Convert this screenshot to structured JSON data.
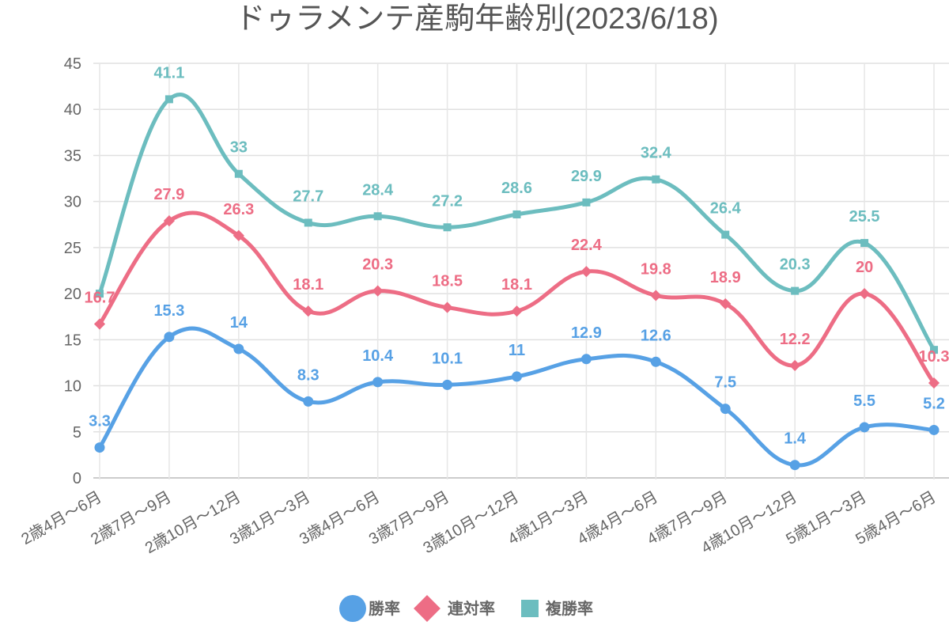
{
  "chart_data": {
    "type": "line",
    "title": "ドゥラメンテ産駒年齢別(2023/6/18)",
    "xlabel": "",
    "ylabel": "",
    "ylim": [
      0,
      45
    ],
    "yticks": [
      0,
      5,
      10,
      15,
      20,
      25,
      30,
      35,
      40,
      45
    ],
    "grid": true,
    "legend_position": "bottom",
    "categories": [
      "2歳4月〜6月",
      "2歳7月〜9月",
      "2歳10月〜12月",
      "3歳1月〜3月",
      "3歳4月〜6月",
      "3歳7月〜9月",
      "3歳10月〜12月",
      "4歳1月〜3月",
      "4歳4月〜6月",
      "4歳7月〜9月",
      "4歳10月〜12月",
      "5歳1月〜3月",
      "5歳4月〜6月"
    ],
    "series": [
      {
        "name": "勝率",
        "marker": "circle",
        "color": "#57a1e5",
        "values": [
          3.3,
          15.3,
          14,
          8.3,
          10.4,
          10.1,
          11,
          12.9,
          12.6,
          7.5,
          1.4,
          5.5,
          5.2
        ],
        "show_labels": [
          true,
          true,
          true,
          true,
          true,
          true,
          true,
          true,
          true,
          true,
          true,
          true,
          true
        ]
      },
      {
        "name": "連対率",
        "marker": "diamond",
        "color": "#ed6d85",
        "values": [
          16.7,
          27.9,
          26.3,
          18.1,
          20.3,
          18.5,
          18.1,
          22.4,
          19.8,
          18.9,
          12.2,
          20,
          10.3
        ],
        "show_labels": [
          true,
          true,
          true,
          true,
          true,
          true,
          true,
          true,
          true,
          true,
          true,
          true,
          true
        ]
      },
      {
        "name": "複勝率",
        "marker": "square",
        "color": "#6cbdbf",
        "values": [
          20,
          41.1,
          33,
          27.7,
          28.4,
          27.2,
          28.6,
          29.9,
          32.4,
          26.4,
          20.3,
          25.5,
          13.9
        ],
        "show_labels": [
          false,
          true,
          true,
          true,
          true,
          true,
          true,
          true,
          true,
          true,
          true,
          true,
          false
        ]
      }
    ]
  }
}
